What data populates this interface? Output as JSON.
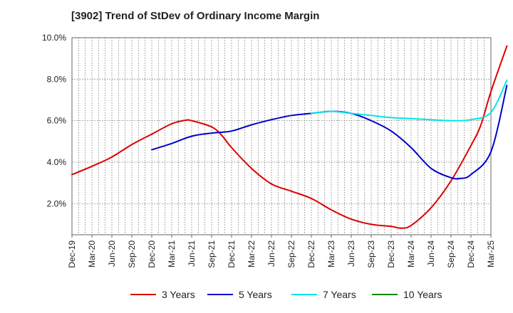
{
  "title": "[3902]  Trend of StDev of Ordinary Income Margin",
  "chart_data": {
    "type": "line",
    "title": "[3902]  Trend of StDev of Ordinary Income Margin",
    "xlabel": "",
    "ylabel": "",
    "x_ticks": [
      "Dec-19",
      "Mar-20",
      "Jun-20",
      "Sep-20",
      "Dec-20",
      "Mar-21",
      "Jun-21",
      "Sep-21",
      "Dec-21",
      "Mar-22",
      "Jun-22",
      "Sep-22",
      "Dec-22",
      "Mar-23",
      "Jun-23",
      "Sep-23",
      "Dec-23",
      "Mar-24",
      "Jun-24",
      "Sep-24",
      "Dec-24",
      "Mar-25"
    ],
    "y_ticks": [
      "2.0%",
      "4.0%",
      "6.0%",
      "8.0%",
      "10.0%"
    ],
    "ylim": [
      0.5,
      10.0
    ],
    "grid": true,
    "legend_position": "bottom",
    "series": [
      {
        "name": "3 Years",
        "color": "#dd0000",
        "points": [
          [
            0,
            3.4
          ],
          [
            1,
            3.8
          ],
          [
            2,
            4.25
          ],
          [
            3,
            4.85
          ],
          [
            4,
            5.35
          ],
          [
            5,
            5.85
          ],
          [
            5.7,
            6.02
          ],
          [
            6,
            6.0
          ],
          [
            7,
            5.7
          ],
          [
            7.5,
            5.3
          ],
          [
            8,
            4.7
          ],
          [
            9,
            3.7
          ],
          [
            10,
            2.95
          ],
          [
            11,
            2.6
          ],
          [
            12,
            2.25
          ],
          [
            13,
            1.7
          ],
          [
            14,
            1.25
          ],
          [
            15,
            1.0
          ],
          [
            16,
            0.9
          ],
          [
            16.5,
            0.82
          ],
          [
            17,
            0.95
          ],
          [
            18,
            1.8
          ],
          [
            19,
            3.1
          ],
          [
            20,
            4.8
          ],
          [
            20.5,
            5.8
          ],
          [
            21,
            7.4
          ],
          [
            21.8,
            9.6
          ]
        ]
      },
      {
        "name": "5 Years",
        "color": "#0000cc",
        "points": [
          [
            4,
            4.6
          ],
          [
            5,
            4.9
          ],
          [
            6,
            5.25
          ],
          [
            7,
            5.4
          ],
          [
            8,
            5.5
          ],
          [
            9,
            5.8
          ],
          [
            10,
            6.05
          ],
          [
            11,
            6.25
          ],
          [
            12,
            6.35
          ],
          [
            13,
            6.45
          ],
          [
            14,
            6.35
          ],
          [
            15,
            6.0
          ],
          [
            16,
            5.5
          ],
          [
            17,
            4.7
          ],
          [
            18,
            3.7
          ],
          [
            19,
            3.25
          ],
          [
            19.5,
            3.22
          ],
          [
            20,
            3.4
          ],
          [
            21,
            4.5
          ],
          [
            21.8,
            7.7
          ]
        ]
      },
      {
        "name": "7 Years",
        "color": "#00e5e5",
        "points": [
          [
            12,
            6.35
          ],
          [
            13,
            6.45
          ],
          [
            14,
            6.35
          ],
          [
            15,
            6.25
          ],
          [
            16,
            6.15
          ],
          [
            17,
            6.1
          ],
          [
            18,
            6.05
          ],
          [
            19,
            6.0
          ],
          [
            20,
            6.05
          ],
          [
            21,
            6.4
          ],
          [
            21.8,
            7.95
          ]
        ]
      },
      {
        "name": "10 Years",
        "color": "#008800",
        "points": []
      }
    ]
  }
}
